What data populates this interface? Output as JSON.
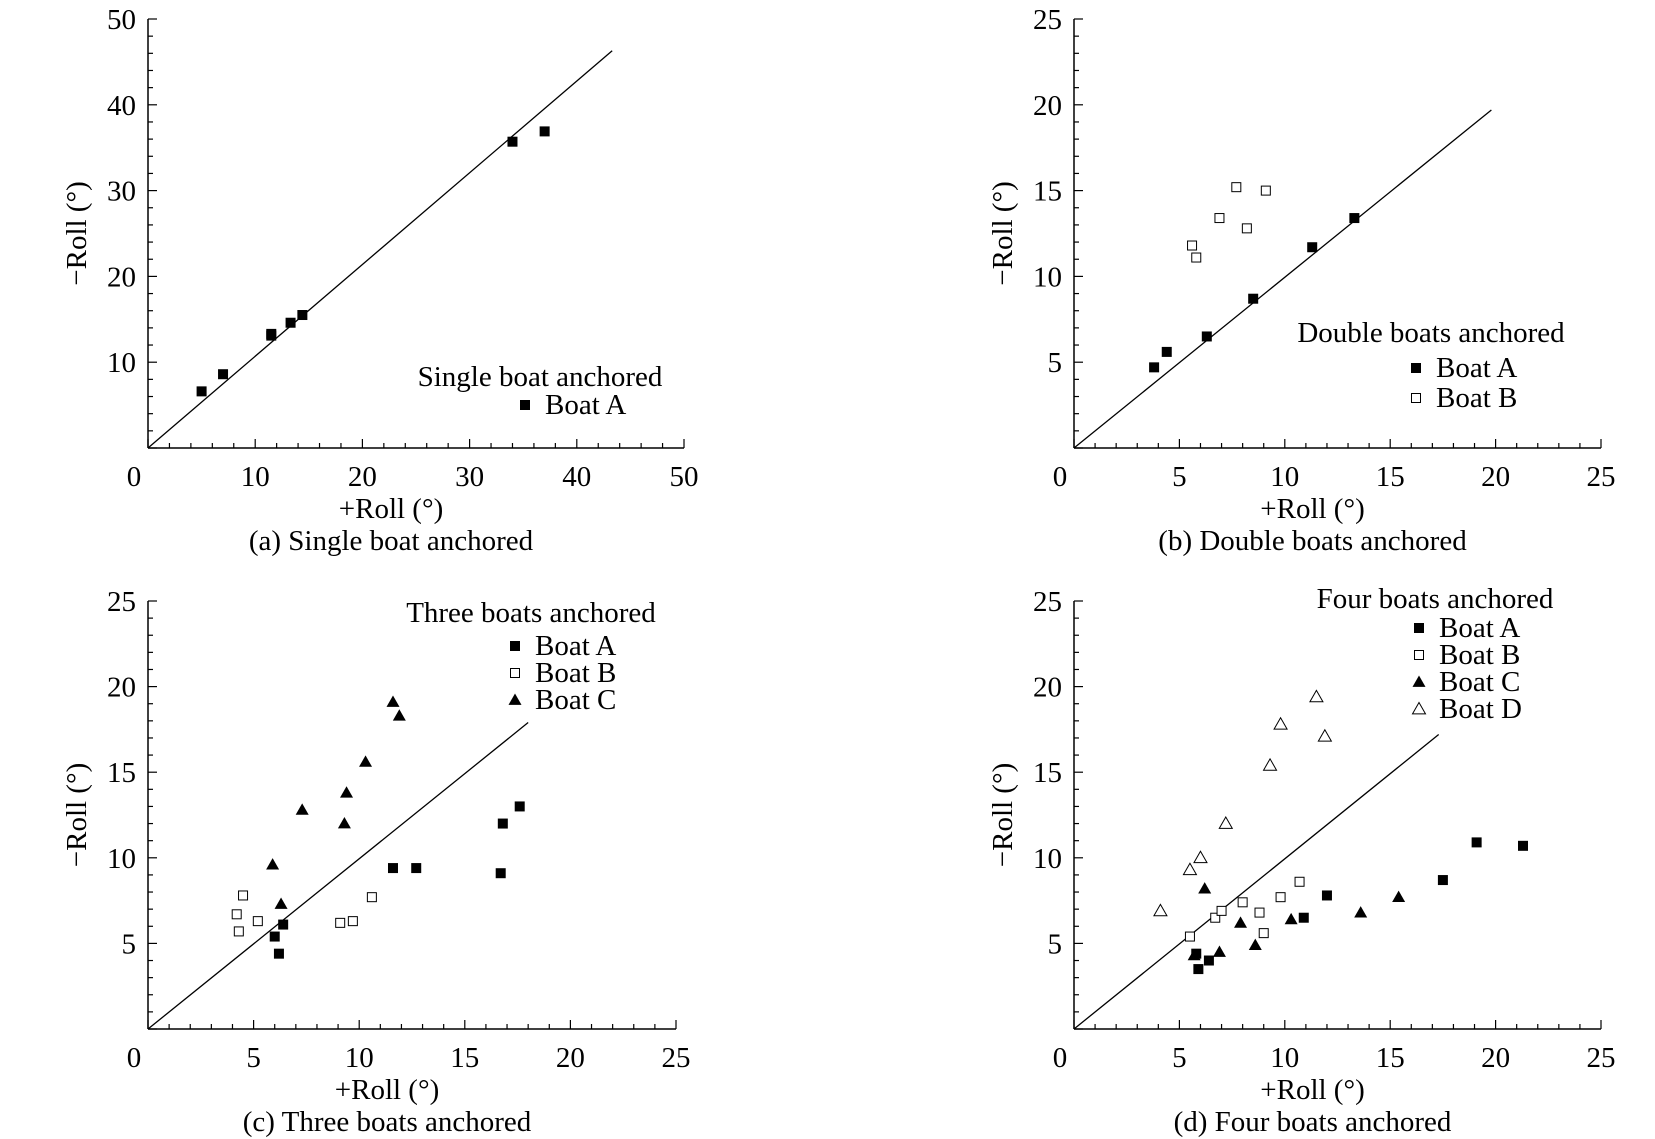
{
  "chart_data": [
    {
      "type": "scatter",
      "caption": "(a) Single boat anchored",
      "xlabel": "+Roll (°)",
      "ylabel": "−Roll (°)",
      "xlim": [
        0,
        50
      ],
      "ylim": [
        0,
        50
      ],
      "xticks": [
        "0",
        "10",
        "20",
        "30",
        "40",
        "50"
      ],
      "yticks": [
        "10",
        "20",
        "30",
        "40",
        "50"
      ],
      "minor_step": 2,
      "reference_line": {
        "from": [
          0,
          0
        ],
        "to": [
          43.3,
          46.3
        ]
      },
      "legend_title": "Single boat anchored",
      "series": [
        {
          "name": "Boat A",
          "marker": "square-filled",
          "points": [
            [
              5,
              6.6
            ],
            [
              7,
              8.6
            ],
            [
              11.5,
              13.3
            ],
            [
              11.5,
              13.1
            ],
            [
              13.3,
              14.6
            ],
            [
              14.4,
              15.5
            ],
            [
              34,
              35.7
            ],
            [
              37,
              36.9
            ]
          ]
        }
      ]
    },
    {
      "type": "scatter",
      "caption": "(b) Double boats anchored",
      "xlabel": "+Roll (°)",
      "ylabel": "−Roll (°)",
      "xlim": [
        0,
        25
      ],
      "ylim": [
        0,
        25
      ],
      "xticks": [
        "0",
        "5",
        "10",
        "15",
        "20",
        "25"
      ],
      "yticks": [
        "5",
        "10",
        "15",
        "20",
        "25"
      ],
      "minor_step": 1,
      "reference_line": {
        "from": [
          0,
          0
        ],
        "to": [
          19.8,
          19.7
        ]
      },
      "legend_title": "Double boats anchored",
      "series": [
        {
          "name": "Boat A",
          "marker": "square-filled",
          "points": [
            [
              3.8,
              4.7
            ],
            [
              4.4,
              5.6
            ],
            [
              6.3,
              6.5
            ],
            [
              8.5,
              8.7
            ],
            [
              11.3,
              11.7
            ],
            [
              13.3,
              13.4
            ]
          ]
        },
        {
          "name": "Boat B",
          "marker": "square-open",
          "points": [
            [
              5.6,
              11.8
            ],
            [
              5.8,
              11.1
            ],
            [
              6.9,
              13.4
            ],
            [
              7.7,
              15.2
            ],
            [
              8.2,
              12.8
            ],
            [
              9.1,
              15
            ]
          ]
        }
      ]
    },
    {
      "type": "scatter",
      "caption": "(c) Three boats anchored",
      "xlabel": "+Roll (°)",
      "ylabel": "−Roll (°)",
      "xlim": [
        0,
        25
      ],
      "ylim": [
        0,
        25
      ],
      "xticks": [
        "0",
        "5",
        "10",
        "15",
        "20",
        "25"
      ],
      "yticks": [
        "5",
        "10",
        "15",
        "20",
        "25"
      ],
      "minor_step": 1,
      "reference_line": {
        "from": [
          0,
          0
        ],
        "to": [
          18,
          17.9
        ]
      },
      "legend_title": "Three boats anchored",
      "series": [
        {
          "name": "Boat A",
          "marker": "square-filled",
          "points": [
            [
              6,
              5.4
            ],
            [
              6.2,
              4.4
            ],
            [
              6.4,
              6.1
            ],
            [
              11.6,
              9.4
            ],
            [
              12.7,
              9.4
            ],
            [
              16.7,
              9.1
            ],
            [
              16.8,
              12
            ],
            [
              17.6,
              13
            ]
          ]
        },
        {
          "name": "Boat B",
          "marker": "square-open",
          "points": [
            [
              4.2,
              6.7
            ],
            [
              4.3,
              5.7
            ],
            [
              4.5,
              7.8
            ],
            [
              5.2,
              6.3
            ],
            [
              9.1,
              6.2
            ],
            [
              9.7,
              6.3
            ],
            [
              10.6,
              7.7
            ]
          ]
        },
        {
          "name": "Boat C",
          "marker": "triangle-filled",
          "points": [
            [
              5.9,
              9.6
            ],
            [
              6.3,
              7.3
            ],
            [
              7.3,
              12.8
            ],
            [
              9.3,
              12
            ],
            [
              9.4,
              13.8
            ],
            [
              10.3,
              15.6
            ],
            [
              11.6,
              19.1
            ],
            [
              11.9,
              18.3
            ]
          ]
        }
      ]
    },
    {
      "type": "scatter",
      "caption": "(d) Four boats anchored",
      "xlabel": "+Roll (°)",
      "ylabel": "−Roll (°)",
      "xlim": [
        0,
        25
      ],
      "ylim": [
        0,
        25
      ],
      "xticks": [
        "0",
        "5",
        "10",
        "15",
        "20",
        "25"
      ],
      "yticks": [
        "5",
        "10",
        "15",
        "20",
        "25"
      ],
      "minor_step": 1,
      "reference_line": {
        "from": [
          0,
          0
        ],
        "to": [
          17.3,
          17.2
        ]
      },
      "legend_title": "Four boats anchored",
      "series": [
        {
          "name": "Boat A",
          "marker": "square-filled",
          "points": [
            [
              5.8,
              4.4
            ],
            [
              5.9,
              3.5
            ],
            [
              6.4,
              4
            ],
            [
              10.9,
              6.5
            ],
            [
              12,
              7.8
            ],
            [
              17.5,
              8.7
            ],
            [
              19.1,
              10.9
            ],
            [
              21.3,
              10.7
            ]
          ]
        },
        {
          "name": "Boat B",
          "marker": "square-open",
          "points": [
            [
              5.5,
              5.4
            ],
            [
              6.7,
              6.5
            ],
            [
              7,
              6.9
            ],
            [
              8,
              7.4
            ],
            [
              8.8,
              6.8
            ],
            [
              9,
              5.6
            ],
            [
              9.8,
              7.7
            ],
            [
              10.7,
              8.6
            ]
          ]
        },
        {
          "name": "Boat C",
          "marker": "triangle-filled",
          "points": [
            [
              5.7,
              4.3
            ],
            [
              6.2,
              8.2
            ],
            [
              6.9,
              4.5
            ],
            [
              7.9,
              6.2
            ],
            [
              8.6,
              4.9
            ],
            [
              10.3,
              6.4
            ],
            [
              13.6,
              6.8
            ],
            [
              15.4,
              7.7
            ]
          ]
        },
        {
          "name": "Boat D",
          "marker": "triangle-open",
          "points": [
            [
              4.1,
              6.9
            ],
            [
              5.5,
              9.3
            ],
            [
              6,
              10
            ],
            [
              7.2,
              12
            ],
            [
              9.3,
              15.4
            ],
            [
              9.8,
              17.8
            ],
            [
              11.5,
              19.4
            ],
            [
              11.9,
              17.1
            ]
          ]
        }
      ]
    }
  ]
}
